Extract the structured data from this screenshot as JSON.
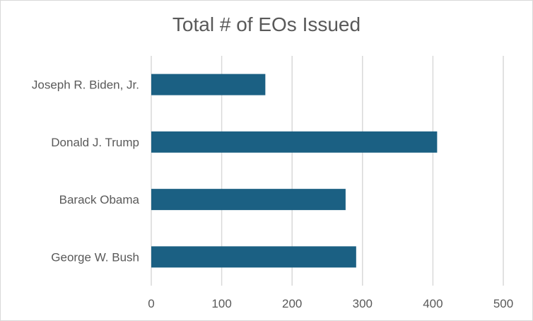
{
  "chart_data": {
    "type": "bar",
    "orientation": "horizontal",
    "title": "Total # of EOs Issued",
    "categories": [
      "Joseph R. Biden, Jr.",
      "Donald J. Trump",
      "Barack Obama",
      "George W. Bush"
    ],
    "values": [
      162,
      406,
      276,
      291
    ],
    "xlabel": "",
    "ylabel": "",
    "xlim": [
      0,
      500
    ],
    "xticks": [
      0,
      100,
      200,
      300,
      400,
      500
    ],
    "grid": "vertical",
    "legend": "none",
    "bar_color": "#1b6083",
    "grid_color": "#d9d9d9",
    "text_color": "#595959"
  }
}
